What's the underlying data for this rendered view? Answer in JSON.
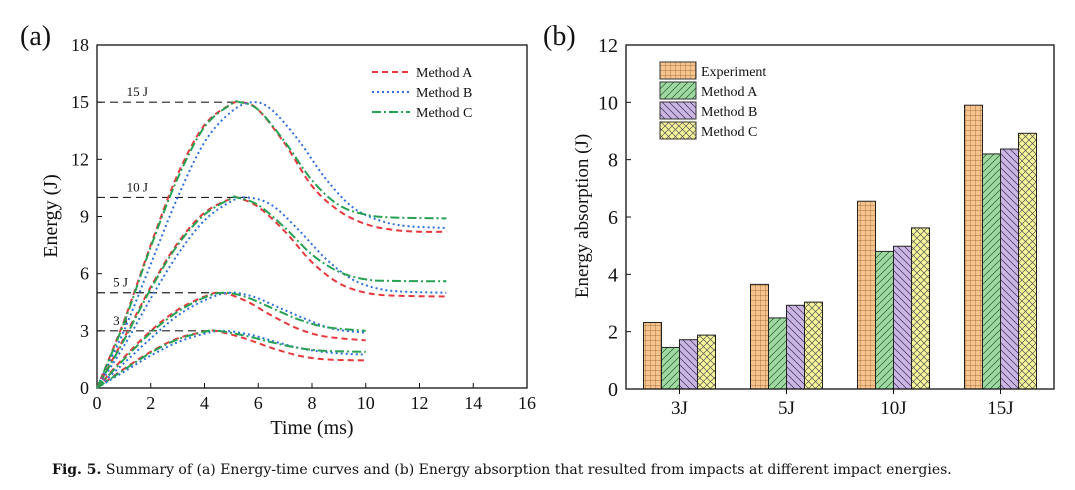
{
  "chart_data": [
    {
      "type": "line",
      "panel_label": "(a)",
      "xlabel": "Time (ms)",
      "ylabel": "Energy (J)",
      "xlim": [
        0,
        16
      ],
      "ylim": [
        0,
        18
      ],
      "xticks": [
        0,
        2,
        4,
        6,
        8,
        10,
        12,
        14,
        16
      ],
      "yticks": [
        0,
        3,
        6,
        9,
        12,
        15,
        18
      ],
      "legend": {
        "placement": "top-right",
        "entries": [
          "Method A",
          "Method B",
          "Method C"
        ]
      },
      "series_styles": {
        "Method A": {
          "color": "#e8383d",
          "dash": "dashed"
        },
        "Method B": {
          "color": "#2f6fe0",
          "dash": "dotted"
        },
        "Method C": {
          "color": "#27a153",
          "dash": "dash-dot"
        }
      },
      "reference_lines": [
        {
          "label": "15 J",
          "y": 15,
          "x_end": 5.4
        },
        {
          "label": "10 J",
          "y": 10,
          "x_end": 5.6
        },
        {
          "label": "5 J",
          "y": 5,
          "x_end": 5.0
        },
        {
          "label": "3 J",
          "y": 3,
          "x_end": 4.6
        }
      ],
      "series": [
        {
          "name": "Method A",
          "case": "15 J",
          "points": [
            [
              0,
              0
            ],
            [
              1,
              3.5
            ],
            [
              2,
              7.5
            ],
            [
              3,
              11.2
            ],
            [
              4,
              13.8
            ],
            [
              5,
              14.9
            ],
            [
              5.4,
              15
            ],
            [
              6,
              14.6
            ],
            [
              7,
              12.8
            ],
            [
              8,
              10.6
            ],
            [
              9,
              9.3
            ],
            [
              10,
              8.6
            ],
            [
              11,
              8.3
            ],
            [
              12,
              8.2
            ],
            [
              13,
              8.2
            ]
          ]
        },
        {
          "name": "Method B",
          "case": "15 J",
          "points": [
            [
              0,
              0
            ],
            [
              1,
              3
            ],
            [
              2,
              6.5
            ],
            [
              3,
              10
            ],
            [
              4,
              12.9
            ],
            [
              5,
              14.5
            ],
            [
              5.8,
              15
            ],
            [
              6.5,
              14.6
            ],
            [
              7.5,
              13
            ],
            [
              8.5,
              11
            ],
            [
              9.5,
              9.5
            ],
            [
              10.5,
              8.8
            ],
            [
              11.5,
              8.5
            ],
            [
              13,
              8.4
            ]
          ]
        },
        {
          "name": "Method C",
          "case": "15 J",
          "points": [
            [
              0,
              0
            ],
            [
              1,
              3.4
            ],
            [
              2,
              7.4
            ],
            [
              3,
              11
            ],
            [
              4,
              13.7
            ],
            [
              5,
              14.9
            ],
            [
              5.3,
              15
            ],
            [
              6,
              14.6
            ],
            [
              7,
              12.9
            ],
            [
              8,
              10.9
            ],
            [
              9,
              9.6
            ],
            [
              10,
              9.1
            ],
            [
              11,
              8.95
            ],
            [
              13,
              8.9
            ]
          ]
        },
        {
          "name": "Method A",
          "case": "10 J",
          "points": [
            [
              0,
              0
            ],
            [
              1,
              2.6
            ],
            [
              2,
              5.3
            ],
            [
              3,
              7.6
            ],
            [
              4,
              9.2
            ],
            [
              5,
              9.95
            ],
            [
              5.2,
              10
            ],
            [
              6,
              9.5
            ],
            [
              7,
              8.2
            ],
            [
              8,
              6.6
            ],
            [
              9,
              5.5
            ],
            [
              10,
              5
            ],
            [
              11,
              4.85
            ],
            [
              13,
              4.8
            ]
          ]
        },
        {
          "name": "Method B",
          "case": "10 J",
          "points": [
            [
              0,
              0
            ],
            [
              1,
              2.2
            ],
            [
              2,
              4.7
            ],
            [
              3,
              7
            ],
            [
              4,
              8.8
            ],
            [
              5,
              9.8
            ],
            [
              5.6,
              10
            ],
            [
              6.5,
              9.6
            ],
            [
              7.5,
              8.3
            ],
            [
              8.5,
              6.8
            ],
            [
              9.5,
              5.7
            ],
            [
              10.5,
              5.2
            ],
            [
              11.5,
              5.05
            ],
            [
              13,
              5.0
            ]
          ]
        },
        {
          "name": "Method C",
          "case": "10 J",
          "points": [
            [
              0,
              0
            ],
            [
              1,
              2.5
            ],
            [
              2,
              5.2
            ],
            [
              3,
              7.5
            ],
            [
              4,
              9.1
            ],
            [
              5,
              9.95
            ],
            [
              5.2,
              10
            ],
            [
              6,
              9.6
            ],
            [
              7,
              8.4
            ],
            [
              8,
              7
            ],
            [
              9,
              6.1
            ],
            [
              10,
              5.7
            ],
            [
              11,
              5.62
            ],
            [
              13,
              5.6
            ]
          ]
        },
        {
          "name": "Method A",
          "case": "5 J",
          "points": [
            [
              0,
              0
            ],
            [
              1,
              1.6
            ],
            [
              2,
              3
            ],
            [
              3,
              4.1
            ],
            [
              4,
              4.8
            ],
            [
              4.6,
              5
            ],
            [
              5.5,
              4.6
            ],
            [
              6.5,
              3.8
            ],
            [
              7.5,
              3.1
            ],
            [
              8.5,
              2.7
            ],
            [
              10,
              2.5
            ]
          ]
        },
        {
          "name": "Method B",
          "case": "5 J",
          "points": [
            [
              0,
              0
            ],
            [
              1,
              1.3
            ],
            [
              2,
              2.6
            ],
            [
              3,
              3.8
            ],
            [
              4,
              4.6
            ],
            [
              4.9,
              5
            ],
            [
              5.8,
              4.8
            ],
            [
              6.8,
              4.2
            ],
            [
              7.8,
              3.6
            ],
            [
              8.8,
              3.1
            ],
            [
              10,
              2.9
            ]
          ]
        },
        {
          "name": "Method C",
          "case": "5 J",
          "points": [
            [
              0,
              0
            ],
            [
              1,
              1.5
            ],
            [
              2,
              2.9
            ],
            [
              3,
              4
            ],
            [
              4,
              4.75
            ],
            [
              4.7,
              5
            ],
            [
              5.5,
              4.8
            ],
            [
              6.5,
              4.2
            ],
            [
              7.5,
              3.6
            ],
            [
              8.5,
              3.2
            ],
            [
              10,
              3.0
            ]
          ]
        },
        {
          "name": "Method A",
          "case": "3 J",
          "points": [
            [
              0,
              0
            ],
            [
              1,
              1
            ],
            [
              2,
              1.9
            ],
            [
              3,
              2.6
            ],
            [
              4,
              2.95
            ],
            [
              4.4,
              3
            ],
            [
              5.5,
              2.6
            ],
            [
              6.5,
              2.1
            ],
            [
              7.5,
              1.7
            ],
            [
              8.5,
              1.5
            ],
            [
              10,
              1.45
            ]
          ]
        },
        {
          "name": "Method B",
          "case": "3 J",
          "points": [
            [
              0,
              0
            ],
            [
              1,
              0.85
            ],
            [
              2,
              1.7
            ],
            [
              3,
              2.4
            ],
            [
              4,
              2.85
            ],
            [
              4.7,
              3
            ],
            [
              5.7,
              2.8
            ],
            [
              6.7,
              2.4
            ],
            [
              7.7,
              2.05
            ],
            [
              8.7,
              1.85
            ],
            [
              10,
              1.75
            ]
          ]
        },
        {
          "name": "Method C",
          "case": "3 J",
          "points": [
            [
              0,
              0
            ],
            [
              1,
              0.95
            ],
            [
              2,
              1.85
            ],
            [
              3,
              2.55
            ],
            [
              4,
              2.95
            ],
            [
              4.5,
              3
            ],
            [
              5.5,
              2.75
            ],
            [
              6.5,
              2.4
            ],
            [
              7.5,
              2.1
            ],
            [
              8.5,
              1.95
            ],
            [
              10,
              1.9
            ]
          ]
        }
      ]
    },
    {
      "type": "bar",
      "panel_label": "(b)",
      "xlabel": "",
      "ylabel": "Energy absorption (J)",
      "ylim": [
        0,
        12
      ],
      "yticks": [
        0,
        2,
        4,
        6,
        8,
        10,
        12
      ],
      "categories": [
        "3J",
        "5J",
        "10J",
        "15J"
      ],
      "legend": {
        "placement": "top-left"
      },
      "series": [
        {
          "name": "Experiment",
          "color": "#f7c48d",
          "pattern": "grid",
          "values": [
            2.32,
            3.65,
            6.55,
            9.9
          ]
        },
        {
          "name": "Method A",
          "color": "#9ed9a2",
          "pattern": "forward-hatch",
          "values": [
            1.45,
            2.48,
            4.8,
            8.2
          ]
        },
        {
          "name": "Method B",
          "color": "#cbb6e2",
          "pattern": "back-hatch",
          "values": [
            1.72,
            2.92,
            4.98,
            8.37
          ]
        },
        {
          "name": "Method C",
          "color": "#f8f59a",
          "pattern": "crosshatch",
          "values": [
            1.88,
            3.03,
            5.62,
            8.92
          ]
        }
      ]
    }
  ],
  "caption": {
    "label": "Fig. 5.",
    "text": "Summary of (a) Energy-time curves and (b) Energy absorption that resulted from impacts at different impact energies."
  }
}
